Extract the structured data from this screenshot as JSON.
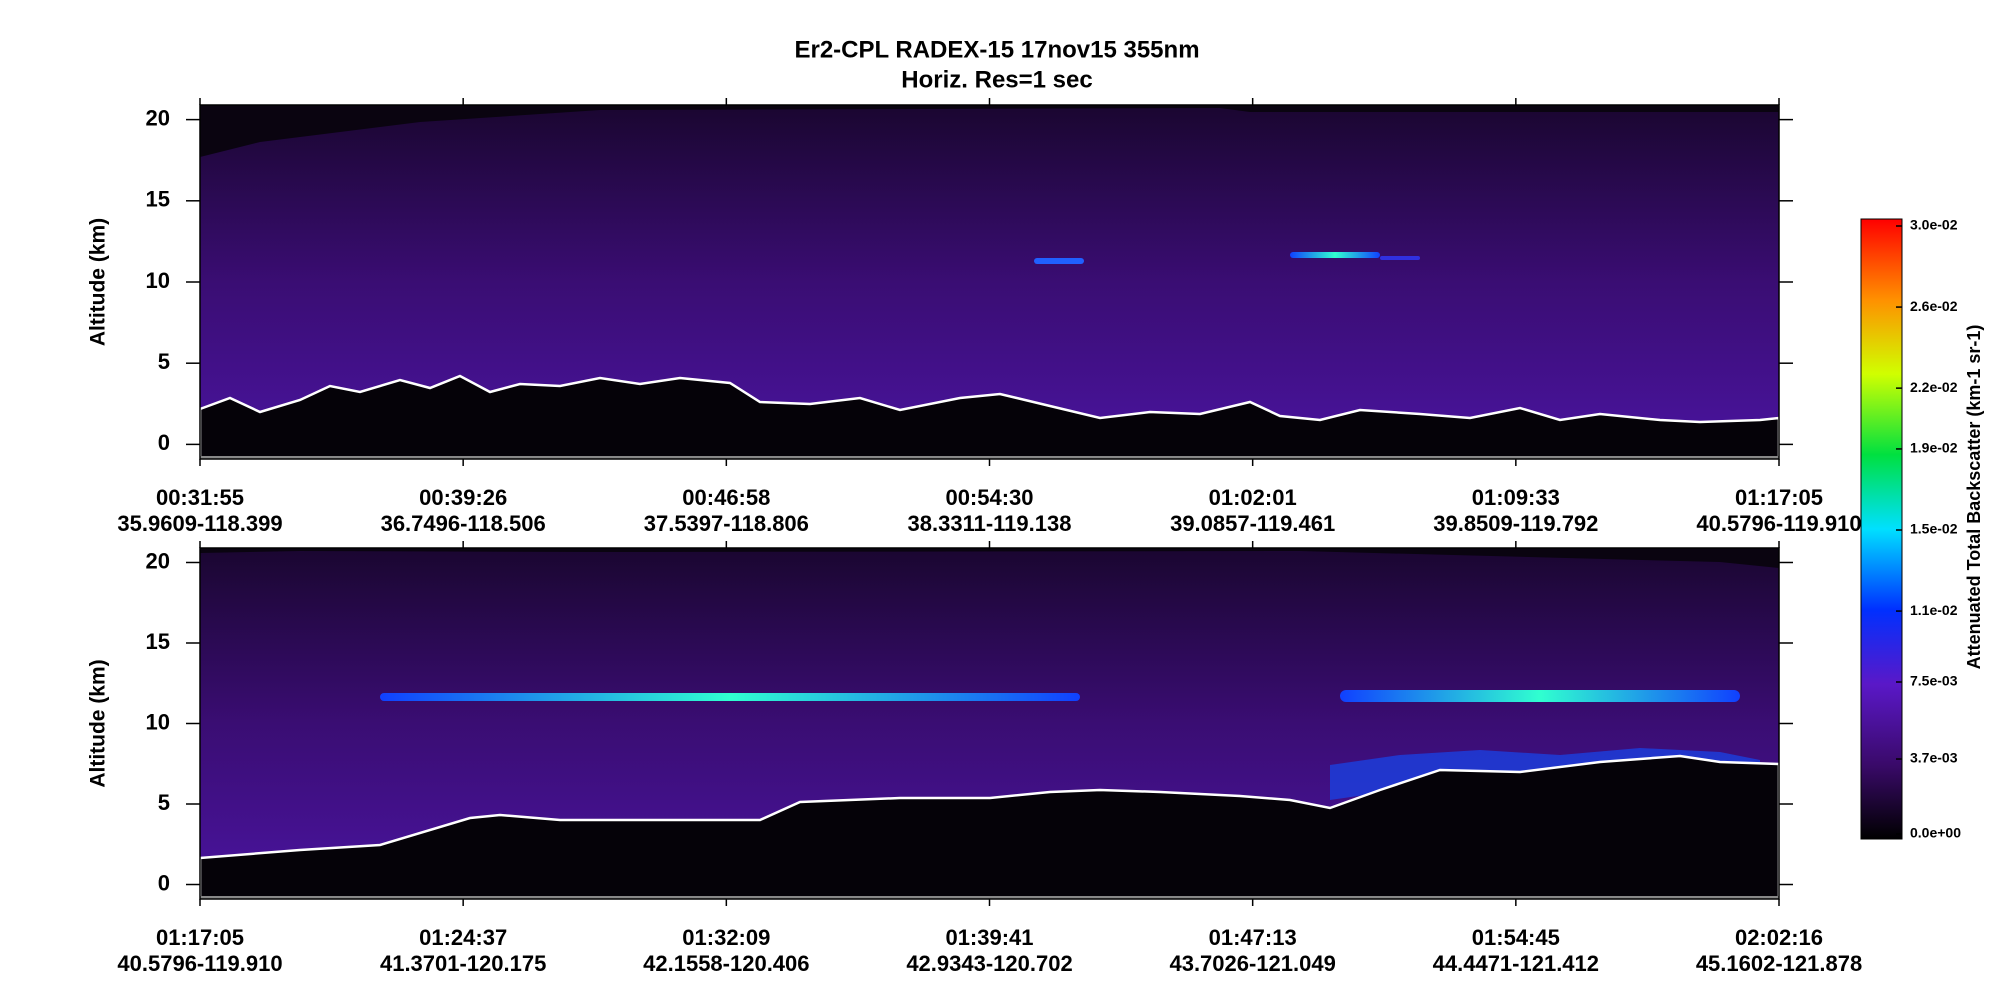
{
  "title": "Er2-CPL  RADEX-15  17nov15  355nm",
  "subtitle": "Horiz. Res=1 sec",
  "chart_data": [
    {
      "type": "curtain",
      "ylabel": "Altitude (km)",
      "ylim": [
        -0.9,
        20.9
      ],
      "yticks": [
        0,
        5,
        10,
        15,
        20
      ],
      "xticks": [
        {
          "time": "00:31:55",
          "location": "35.9609-118.399"
        },
        {
          "time": "00:39:26",
          "location": "36.7496-118.506"
        },
        {
          "time": "00:46:58",
          "location": "37.5397-118.806"
        },
        {
          "time": "00:54:30",
          "location": "38.3311-119.138"
        },
        {
          "time": "01:02:01",
          "location": "39.0857-119.461"
        },
        {
          "time": "01:09:33",
          "location": "39.8509-119.792"
        },
        {
          "time": "01:17:05",
          "location": "40.5796-119.910"
        }
      ]
    },
    {
      "type": "curtain",
      "ylabel": "Altitude (km)",
      "ylim": [
        -0.9,
        20.9
      ],
      "yticks": [
        0,
        5,
        10,
        15,
        20
      ],
      "xticks": [
        {
          "time": "01:17:05",
          "location": "40.5796-119.910"
        },
        {
          "time": "01:24:37",
          "location": "41.3701-120.175"
        },
        {
          "time": "01:32:09",
          "location": "42.1558-120.406"
        },
        {
          "time": "01:39:41",
          "location": "42.9343-120.702"
        },
        {
          "time": "01:47:13",
          "location": "43.7026-121.049"
        },
        {
          "time": "01:54:45",
          "location": "44.4471-121.412"
        },
        {
          "time": "02:02:16",
          "location": "45.1602-121.878"
        }
      ]
    }
  ],
  "colorbar": {
    "label": "Attenuated Total Backscatter (km-1 sr-1)",
    "clim": [
      0,
      0.03
    ],
    "ticks": [
      {
        "value": 0,
        "label": "0.0e+00"
      },
      {
        "value": 0.0037,
        "label": "3.7e-03"
      },
      {
        "value": 0.0075,
        "label": "7.5e-03"
      },
      {
        "value": 0.011,
        "label": "1.1e-02"
      },
      {
        "value": 0.015,
        "label": "1.5e-02"
      },
      {
        "value": 0.019,
        "label": "1.9e-02"
      },
      {
        "value": 0.022,
        "label": "2.2e-02"
      },
      {
        "value": 0.026,
        "label": "2.6e-02"
      },
      {
        "value": 0.03,
        "label": "3.0e-02"
      }
    ]
  }
}
